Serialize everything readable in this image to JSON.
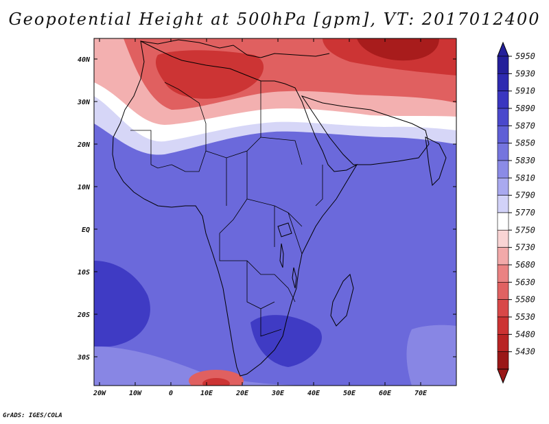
{
  "title": "Geopotential Height at 500hPa [gpm], VT: 2017012400",
  "credit": "GrADS: IGES/COLA",
  "lat_labels": [
    "40N",
    "30N",
    "20N",
    "10N",
    "EQ",
    "10S",
    "20S",
    "30S"
  ],
  "lon_labels": [
    "20W",
    "10W",
    "0",
    "10E",
    "20E",
    "30E",
    "40E",
    "50E",
    "60E",
    "70E"
  ],
  "colorbar": {
    "levels": [
      "5950",
      "5930",
      "5910",
      "5890",
      "5870",
      "5850",
      "5830",
      "5810",
      "5790",
      "5770",
      "5750",
      "5730",
      "5680",
      "5630",
      "5580",
      "5530",
      "5480",
      "5430"
    ],
    "colors": [
      "#241f9a",
      "#2e2ab0",
      "#3a36c0",
      "#4a48cc",
      "#5f5fd6",
      "#7575de",
      "#8b8be6",
      "#a9a9ef",
      "#d2d2f8",
      "#ffffff",
      "#f9d4d4",
      "#f2a9a9",
      "#ea8282",
      "#e06262",
      "#d84848",
      "#cc3333",
      "#b82424",
      "#9a1717"
    ]
  },
  "map_colors": {
    "background": "#6b69db",
    "deep_blue": "#3f3bc4",
    "mid_blue": "#5957d3",
    "light_blue": "#8886e4",
    "pale": "#d6d6f7",
    "white": "#ffffff",
    "pink": "#f3b0b0",
    "red": "#e06060",
    "dark_red": "#cc3434",
    "darkest_red": "#a81c1c"
  }
}
